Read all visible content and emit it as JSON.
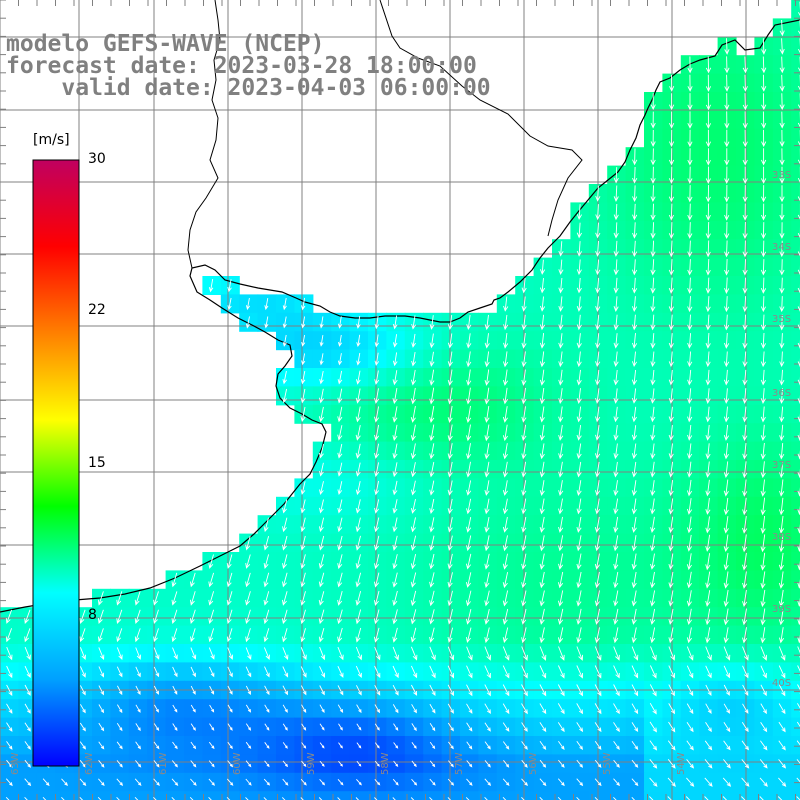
{
  "title": {
    "line1": "modelo GEFS-WAVE (NCEP)",
    "line2": "forecast date: 2023-03-28 18:00:00",
    "line3": "    valid date: 2023-04-03 06:00:00"
  },
  "colorbar": {
    "units": "[m/s]",
    "ticks": [
      "30",
      "22",
      "15",
      "8"
    ],
    "range": [
      0,
      30
    ],
    "stops": [
      "#0000ff",
      "#00a0ff",
      "#00ffff",
      "#00ff00",
      "#ffff00",
      "#ff8000",
      "#ff0000",
      "#c00060"
    ]
  },
  "map": {
    "longitude_labels": [
      "63W",
      "62W",
      "61W",
      "60W",
      "59W",
      "58W",
      "57W",
      "56W",
      "55W",
      "54W"
    ],
    "latitude_labels": [
      "33S",
      "34S",
      "35S",
      "36S",
      "37S",
      "38S",
      "39S",
      "40S"
    ],
    "variable": "wind speed with direction arrows",
    "colors": {
      "land": "#ffffff",
      "grid": "#808080",
      "coast": "#000000",
      "arrow": "#ffffff"
    }
  }
}
